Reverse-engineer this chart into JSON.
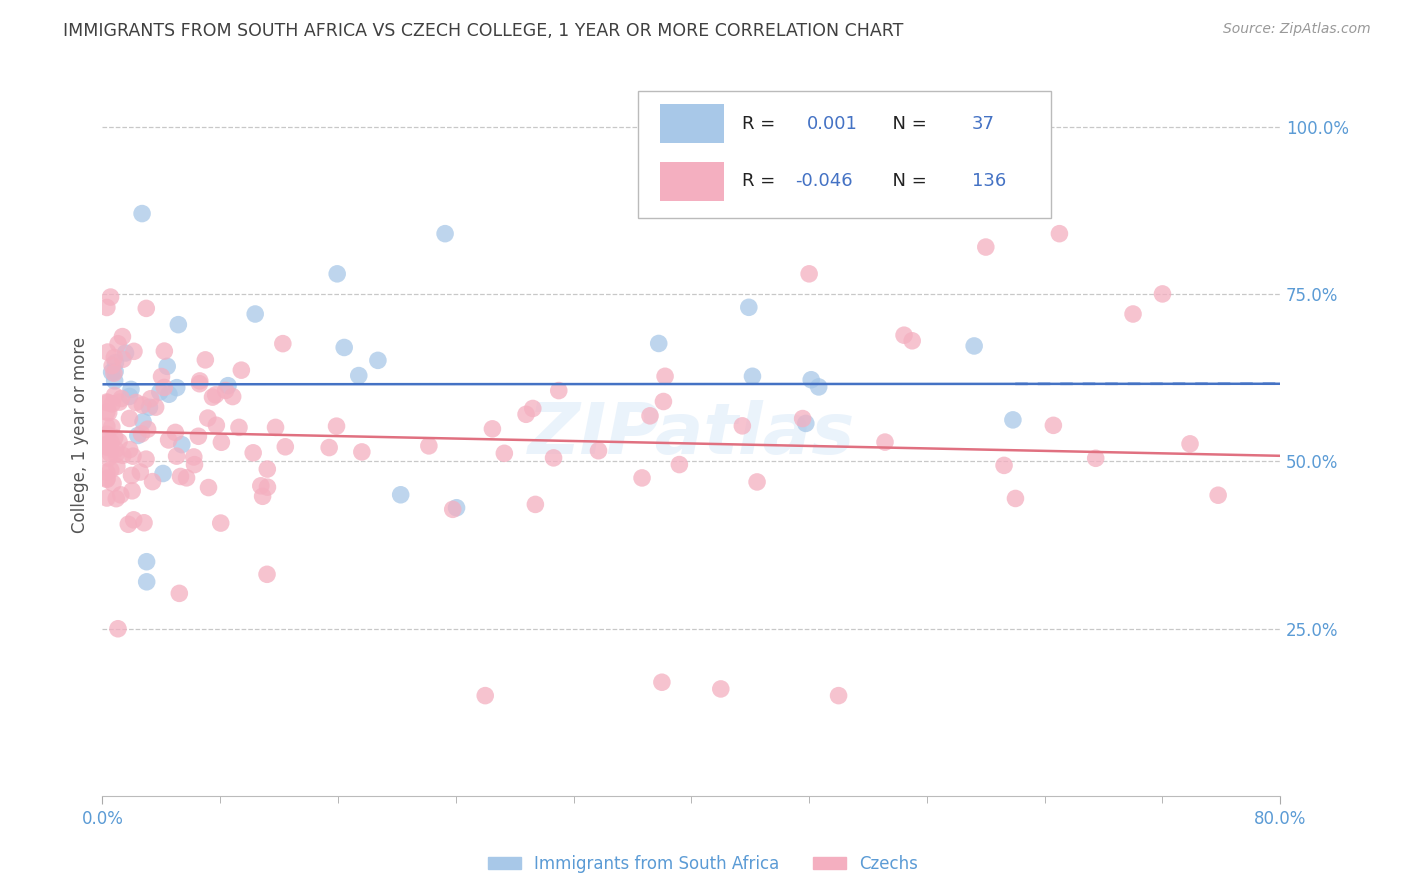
{
  "title": "IMMIGRANTS FROM SOUTH AFRICA VS CZECH COLLEGE, 1 YEAR OR MORE CORRELATION CHART",
  "source": "Source: ZipAtlas.com",
  "ylabel_label": "College, 1 year or more",
  "legend1_label": "Immigrants from South Africa",
  "legend2_label": "Czechs",
  "R_blue": "0.001",
  "N_blue": "37",
  "R_pink": "-0.046",
  "N_pink": "136",
  "blue_color": "#a8c8e8",
  "pink_color": "#f4afc0",
  "blue_line_color": "#4472c4",
  "pink_line_color": "#e07080",
  "axis_color": "#5b9bd5",
  "label_color": "#333333",
  "background_color": "#ffffff",
  "grid_color": "#c8c8c8",
  "title_color": "#404040",
  "watermark": "ZIPatlas",
  "xlim": [
    0.0,
    0.8
  ],
  "ylim": [
    0.0,
    1.08
  ],
  "x_ticks_show": [
    0.0,
    0.8
  ],
  "x_ticks_minor": [
    0.08,
    0.16,
    0.24,
    0.32,
    0.4,
    0.48,
    0.56,
    0.64,
    0.72
  ],
  "y_ticks": [
    0.0,
    0.25,
    0.5,
    0.75,
    1.0
  ],
  "y_tick_labels": [
    "",
    "25.0%",
    "50.0%",
    "75.0%",
    "100.0%"
  ]
}
